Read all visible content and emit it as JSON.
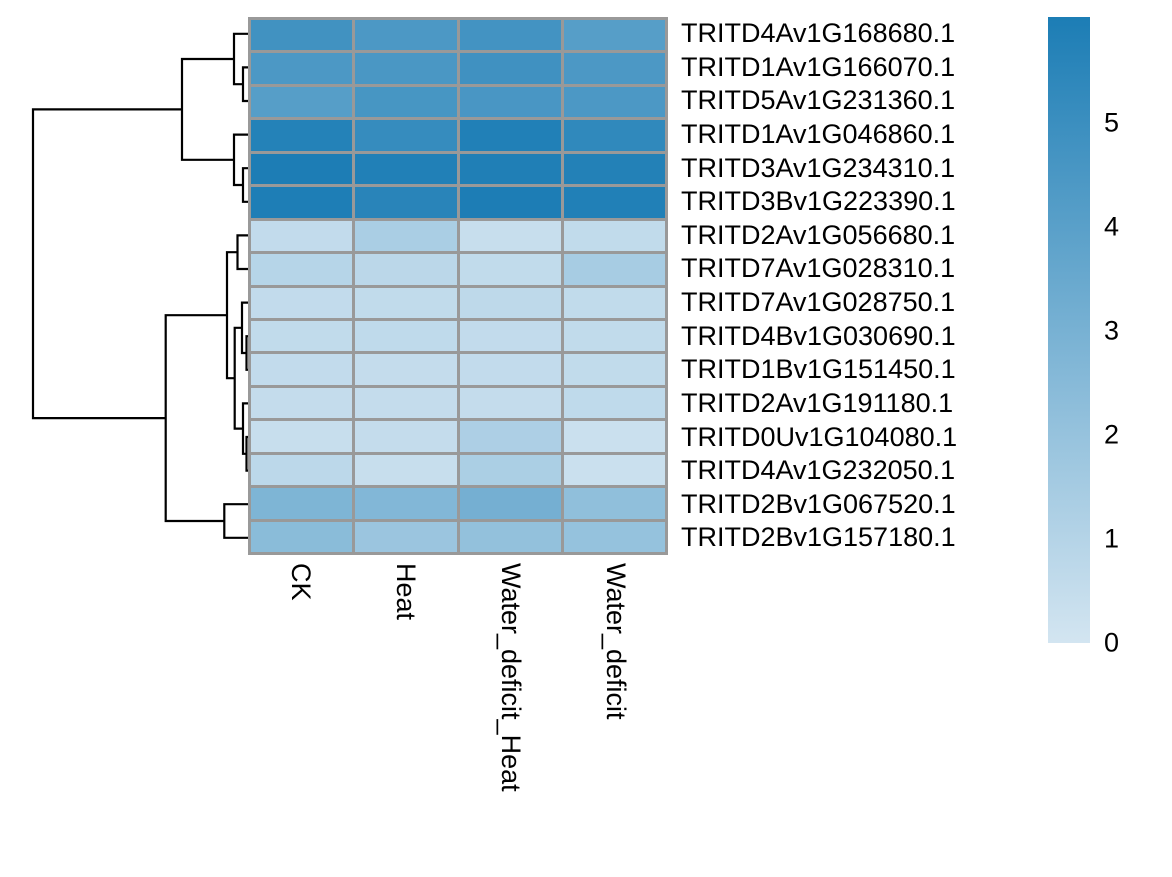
{
  "chart_data": {
    "type": "heatmap",
    "title": "",
    "columns": [
      "CK",
      "Heat",
      "Water_deficit_Heat",
      "Water_deficit"
    ],
    "rows": [
      "TRITD4Av1G168680.1",
      "TRITD1Av1G166070.1",
      "TRITD5Av1G231360.1",
      "TRITD1Av1G046860.1",
      "TRITD3Av1G234310.1",
      "TRITD3Bv1G223390.1",
      "TRITD2Av1G056680.1",
      "TRITD7Av1G028310.1",
      "TRITD7Av1G028750.1",
      "TRITD4Bv1G030690.1",
      "TRITD1Bv1G151450.1",
      "TRITD2Av1G191180.1",
      "TRITD0Uv1G104080.1",
      "TRITD4Av1G232050.1",
      "TRITD2Bv1G067520.1",
      "TRITD2Bv1G157180.1"
    ],
    "values": [
      [
        4.8,
        4.45,
        4.75,
        4.1
      ],
      [
        4.45,
        4.5,
        4.85,
        4.45
      ],
      [
        4.1,
        4.6,
        4.55,
        4.45
      ],
      [
        5.75,
        5.15,
        5.85,
        5.35
      ],
      [
        6.0,
        5.85,
        5.9,
        5.8
      ],
      [
        5.95,
        5.6,
        6.0,
        5.85
      ],
      [
        0.55,
        1.35,
        0.4,
        0.6
      ],
      [
        0.95,
        0.8,
        0.6,
        1.45
      ],
      [
        0.55,
        0.6,
        0.7,
        0.6
      ],
      [
        0.6,
        0.65,
        0.55,
        0.6
      ],
      [
        0.55,
        0.5,
        0.55,
        0.6
      ],
      [
        0.5,
        0.5,
        0.5,
        0.65
      ],
      [
        0.4,
        0.5,
        1.25,
        0.3
      ],
      [
        0.75,
        0.4,
        1.3,
        0.3
      ],
      [
        2.8,
        2.65,
        3.1,
        2.2
      ],
      [
        2.4,
        1.85,
        2.1,
        2.05
      ]
    ],
    "color_scale": {
      "min": 0,
      "max": 6.02,
      "min_color": "#d3e5f1",
      "max_color": "#1c7db5",
      "grid_color": "#999999",
      "legend_ticks": [
        5,
        4,
        3,
        2,
        1,
        0
      ],
      "legend_position": "right"
    },
    "row_dendrogram": {
      "line_color": "#000000",
      "topology": "((1,(2,3)),(4,(5,6))) vs (((7,8),((9,(10,11)),(12,(13,14)))),(15,16))",
      "paths": [
        [
          [
            248,
            67.4
          ],
          [
            243,
            67.4
          ],
          [
            243,
            101
          ],
          [
            248,
            101
          ]
        ],
        [
          [
            248,
            33.8
          ],
          [
            234,
            33.8
          ],
          [
            234,
            84.2
          ],
          [
            243,
            84.2
          ]
        ],
        [
          [
            248,
            168.2
          ],
          [
            243,
            168.2
          ],
          [
            243,
            201.8
          ],
          [
            248,
            201.8
          ]
        ],
        [
          [
            248,
            134.6
          ],
          [
            234,
            134.6
          ],
          [
            234,
            185
          ],
          [
            243,
            185
          ]
        ],
        [
          [
            234,
            59
          ],
          [
            182,
            59
          ],
          [
            182,
            159.8
          ],
          [
            234,
            159.8
          ]
        ],
        [
          [
            248,
            235.4
          ],
          [
            237.5,
            235.4
          ],
          [
            237.5,
            269
          ],
          [
            248,
            269
          ]
        ],
        [
          [
            248,
            336.2
          ],
          [
            246.5,
            336.2
          ],
          [
            246.5,
            369.8
          ],
          [
            248,
            369.8
          ]
        ],
        [
          [
            248,
            302.6
          ],
          [
            242,
            302.6
          ],
          [
            242,
            353
          ],
          [
            246.5,
            353
          ]
        ],
        [
          [
            248,
            437
          ],
          [
            246.5,
            437
          ],
          [
            246.5,
            470.6
          ],
          [
            248,
            470.6
          ]
        ],
        [
          [
            248,
            403.4
          ],
          [
            243,
            403.4
          ],
          [
            243,
            453.8
          ],
          [
            246.5,
            453.8
          ]
        ],
        [
          [
            242,
            327.8
          ],
          [
            234.7,
            327.8
          ],
          [
            234.7,
            428.6
          ],
          [
            243,
            428.6
          ]
        ],
        [
          [
            237.5,
            252.2
          ],
          [
            227,
            252.2
          ],
          [
            227,
            378.2
          ],
          [
            234.7,
            378.2
          ]
        ],
        [
          [
            248,
            504.2
          ],
          [
            224.3,
            504.2
          ],
          [
            224.3,
            537.8
          ],
          [
            248,
            537.8
          ]
        ],
        [
          [
            227,
            315.2
          ],
          [
            165.7,
            315.2
          ],
          [
            165.7,
            521
          ],
          [
            224.3,
            521
          ]
        ],
        [
          [
            182,
            109.4
          ],
          [
            33,
            109.4
          ],
          [
            33,
            418.1
          ],
          [
            165.7,
            418.1
          ]
        ]
      ]
    }
  }
}
